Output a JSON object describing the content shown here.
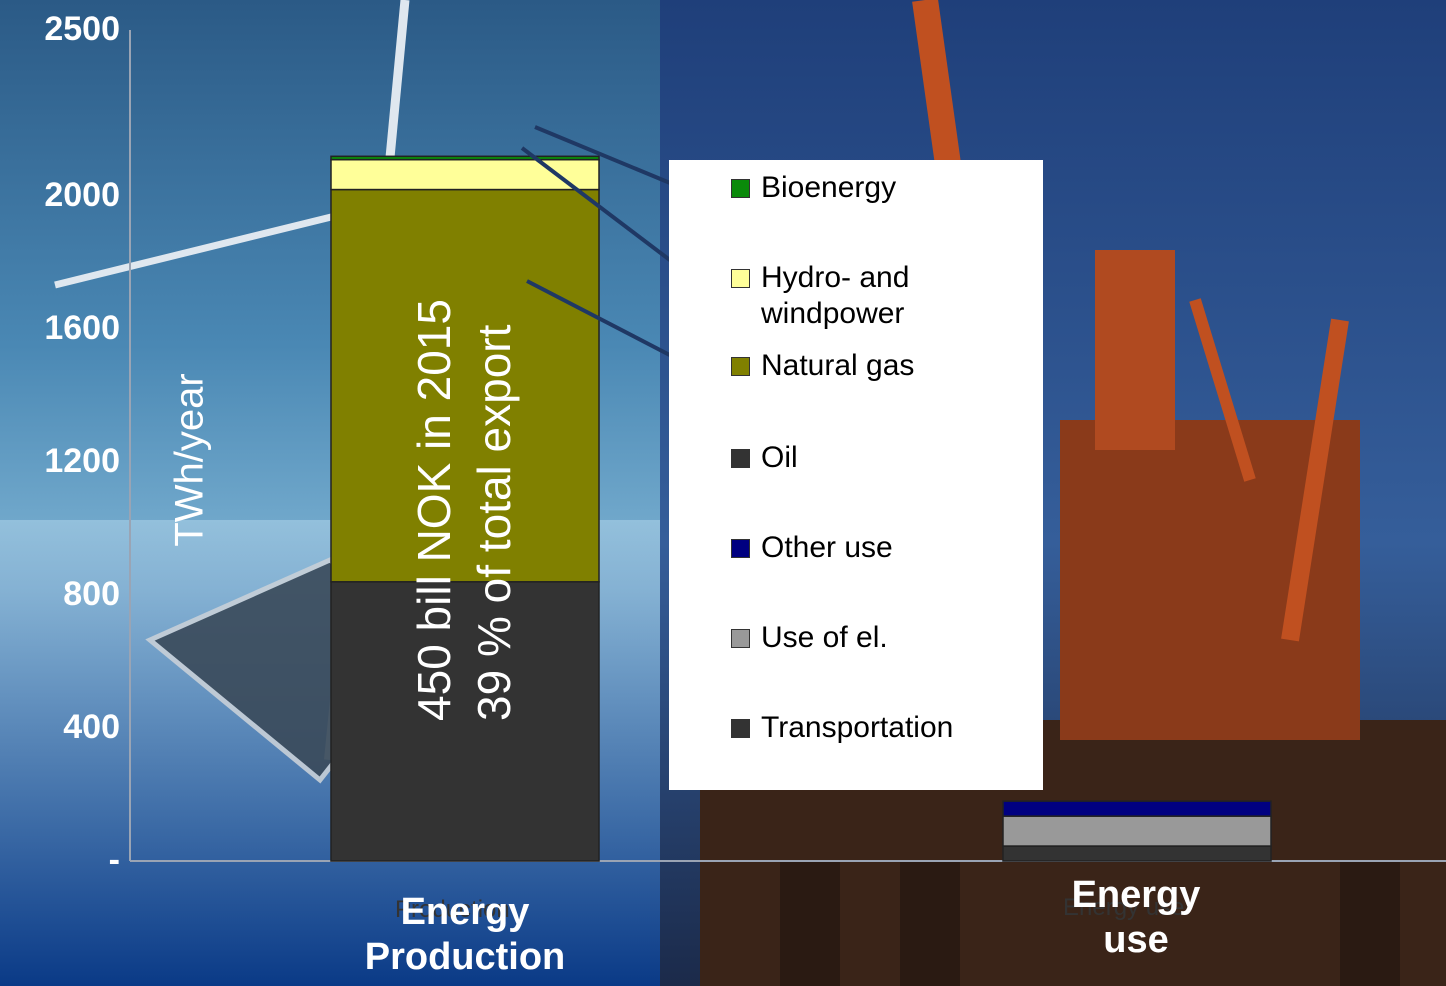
{
  "chart_data": {
    "type": "bar",
    "stacked": true,
    "ylabel": "TWh/year",
    "y_tick_labels": [
      "-",
      "400",
      "800",
      "1200",
      "1600",
      "2000",
      "2500"
    ],
    "ylim": [
      0,
      2500
    ],
    "categories": [
      {
        "lines": [
          "Energy",
          "Production"
        ]
      },
      {
        "lines": [
          "Energy",
          "use"
        ]
      }
    ],
    "faint_category_labels": [
      "Production",
      "Energy use"
    ],
    "series": [
      {
        "name": "Bioenergy",
        "color": "#0a8a0a",
        "values": [
          10,
          0
        ]
      },
      {
        "name": "Hydro- and windpower",
        "color": "#ffff99",
        "values": [
          90,
          0
        ]
      },
      {
        "name": "Natural gas",
        "color": "#808000",
        "values": [
          1180,
          0
        ]
      },
      {
        "name": "Oil",
        "color": "#333333",
        "values": [
          840,
          0
        ]
      },
      {
        "name": "Other use",
        "color": "#000080",
        "values": [
          0,
          45
        ]
      },
      {
        "name": "Use of el.",
        "color": "#999999",
        "values": [
          0,
          90
        ]
      },
      {
        "name": "Transportation",
        "color": "#333333",
        "values": [
          0,
          45
        ]
      }
    ],
    "legend": {
      "position": "right",
      "items": [
        {
          "label_lines": [
            "Bioenergy"
          ],
          "color": "#0a8a0a"
        },
        {
          "label_lines": [
            "Hydro- and",
            "windpower"
          ],
          "color": "#ffff99"
        },
        {
          "label_lines": [
            "Natural gas"
          ],
          "color": "#808000"
        },
        {
          "label_lines": [
            "Oil"
          ],
          "color": "#333333"
        },
        {
          "label_lines": [
            "Other use"
          ],
          "color": "#000080"
        },
        {
          "label_lines": [
            "Use of el."
          ],
          "color": "#999999"
        },
        {
          "label_lines": [
            "Transportation"
          ],
          "color": "#333333"
        }
      ]
    },
    "annotation_lines": [
      "450 bill NOK in 2015",
      "39 % of total export"
    ]
  },
  "colors": {
    "sky": "#1d3a6b",
    "leader_line": "#1f3864",
    "axis": "#9aa4b4"
  }
}
